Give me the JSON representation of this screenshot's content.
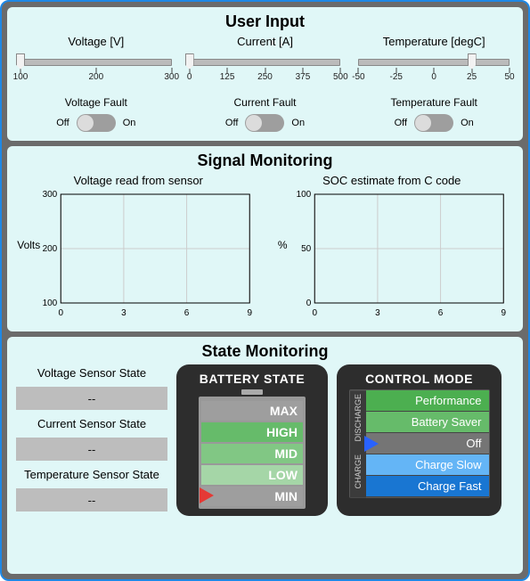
{
  "colors": {
    "frame_border": "#1e88e5",
    "frame_bg": "#6b6b6b",
    "panel_bg": "#e0f7f7",
    "slider_rail": "#bbbbbb",
    "toggle_bg": "#9e9e9e",
    "toggle_knob": "#dcdcdc",
    "grid": "#cccccc",
    "axis": "#000000",
    "sensor_box": "#bdbdbd",
    "gauge_bg": "#2d2d2d",
    "battery_border": "#999999",
    "arrow_red": "#e53935",
    "arrow_blue": "#2962ff"
  },
  "panels": {
    "user_input": {
      "title": "User Input"
    },
    "signal_monitoring": {
      "title": "Signal Monitoring"
    },
    "state_monitoring": {
      "title": "State Monitoring"
    }
  },
  "sliders": {
    "voltage": {
      "label": "Voltage [V]",
      "min": 100,
      "max": 300,
      "value": 100,
      "ticks": [
        100,
        200,
        300
      ]
    },
    "current": {
      "label": "Current [A]",
      "min": 0,
      "max": 500,
      "value": 0,
      "ticks": [
        0,
        125,
        250,
        375,
        500
      ]
    },
    "temperature": {
      "label": "Temperature [degC]",
      "min": -50,
      "max": 50,
      "value": 25,
      "ticks": [
        -50,
        -25,
        0,
        25,
        50
      ]
    }
  },
  "faults": {
    "voltage": {
      "title": "Voltage Fault",
      "off": "Off",
      "on": "On",
      "state": "off"
    },
    "current": {
      "title": "Current Fault",
      "off": "Off",
      "on": "On",
      "state": "off"
    },
    "temperature": {
      "title": "Temperature Fault",
      "off": "Off",
      "on": "On",
      "state": "off"
    }
  },
  "charts": {
    "voltage": {
      "title": "Voltage read from sensor",
      "ylabel": "Volts",
      "xlim": [
        0,
        9
      ],
      "xticks": [
        0,
        3,
        6,
        9
      ],
      "ylim": [
        100,
        300
      ],
      "yticks": [
        100,
        200,
        300
      ],
      "grid_color": "#cccccc",
      "axis_color": "#000000",
      "tick_fontsize": 10,
      "label_fontsize": 12
    },
    "soc": {
      "title": "SOC estimate from C code",
      "ylabel": "%",
      "xlim": [
        0,
        9
      ],
      "xticks": [
        0,
        3,
        6,
        9
      ],
      "ylim": [
        0,
        100
      ],
      "yticks": [
        0,
        50,
        100
      ],
      "grid_color": "#cccccc",
      "axis_color": "#000000",
      "tick_fontsize": 10,
      "label_fontsize": 12
    }
  },
  "sensor_states": {
    "voltage": {
      "label": "Voltage Sensor State",
      "value": "--"
    },
    "current": {
      "label": "Current Sensor State",
      "value": "--"
    },
    "temperature": {
      "label": "Temperature Sensor State",
      "value": "--"
    }
  },
  "battery_state": {
    "title": "BATTERY STATE",
    "segments": [
      {
        "label": "MIN",
        "color": "#9e9e9e"
      },
      {
        "label": "LOW",
        "color": "#a5d6a7"
      },
      {
        "label": "MID",
        "color": "#81c784"
      },
      {
        "label": "HIGH",
        "color": "#66bb6a"
      },
      {
        "label": "MAX",
        "color": "#9e9e9e"
      }
    ],
    "arrow_index": 0,
    "arrow_color": "#e53935"
  },
  "control_mode": {
    "title": "CONTROL MODE",
    "vlabels": {
      "top": "DISCHARGE",
      "bottom": "CHARGE"
    },
    "segments": [
      {
        "label": "Performance",
        "color": "#4caf50"
      },
      {
        "label": "Battery Saver",
        "color": "#66bb6a"
      },
      {
        "label": "Off",
        "color": "#757575"
      },
      {
        "label": "Charge Slow",
        "color": "#64b5f6"
      },
      {
        "label": "Charge Fast",
        "color": "#1976d2"
      }
    ],
    "arrow_index": 2,
    "arrow_color": "#2962ff"
  }
}
